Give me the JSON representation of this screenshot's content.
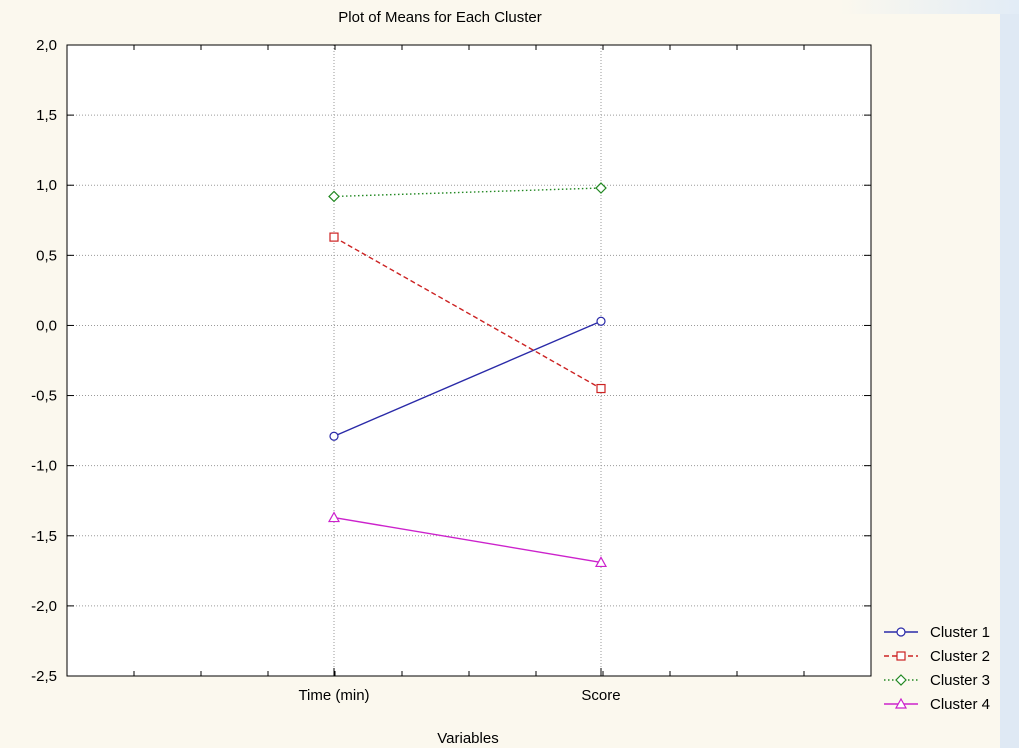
{
  "chart_data": {
    "type": "line",
    "title": "Plot of Means for Each Cluster",
    "xlabel": "Variables",
    "ylabel": "",
    "categories": [
      "Time (min)",
      "Score"
    ],
    "ylim": [
      -2.5,
      2.0
    ],
    "yticks": [
      "2,0",
      "1,5",
      "1,0",
      "0,5",
      "0,0",
      "-0,5",
      "-1,0",
      "-1,5",
      "-2,0",
      "-2,5"
    ],
    "grid": true,
    "legend_position": "bottom-right",
    "series": [
      {
        "name": "Cluster 1",
        "values": [
          -0.79,
          0.03
        ],
        "color": "#2a2aa8",
        "dash": "solid",
        "marker": "circle"
      },
      {
        "name": "Cluster 2",
        "values": [
          0.63,
          -0.45
        ],
        "color": "#cc2222",
        "dash": "dashed",
        "marker": "square"
      },
      {
        "name": "Cluster 3",
        "values": [
          0.92,
          0.98
        ],
        "color": "#228822",
        "dash": "dotted",
        "marker": "diamond"
      },
      {
        "name": "Cluster 4",
        "values": [
          -1.37,
          -1.69
        ],
        "color": "#cc22cc",
        "dash": "solid",
        "marker": "triangle"
      }
    ]
  }
}
